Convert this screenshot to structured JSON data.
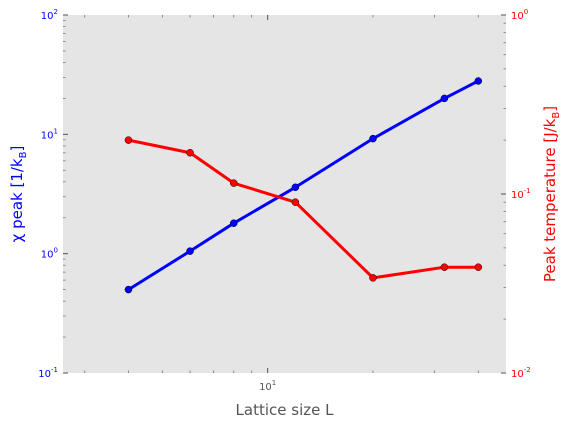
{
  "chart_data": {
    "type": "line",
    "x": [
      4,
      6,
      8,
      12,
      20,
      32,
      40
    ],
    "xscale": "log",
    "xlim": [
      2.6,
      48
    ],
    "xlabel": "Lattice size L",
    "x_tick_labels": [
      "10^1"
    ],
    "series": [
      {
        "axis": "left",
        "color": "#0000ff",
        "values": [
          0.5,
          1.05,
          1.8,
          3.6,
          9.2,
          20.0,
          28.0
        ]
      },
      {
        "axis": "right",
        "color": "#ff0000",
        "values": [
          0.2,
          0.17,
          0.115,
          0.09,
          0.034,
          0.039,
          0.039
        ]
      }
    ],
    "left_axis": {
      "label_math": "χ peak [1/k",
      "label_sub": "B",
      "label_close": "]",
      "color": "#0000ff",
      "scale": "log",
      "ylim": [
        0.1,
        100
      ],
      "ticks": [
        {
          "base": "10",
          "exp": "-1"
        },
        {
          "base": "10",
          "exp": "0"
        },
        {
          "base": "10",
          "exp": "1"
        },
        {
          "base": "10",
          "exp": "2"
        }
      ]
    },
    "right_axis": {
      "label_text": "Peak temperature [J/k",
      "label_sub": "B",
      "label_close": "]",
      "color": "#ff0000",
      "scale": "log",
      "ylim": [
        0.01,
        1
      ],
      "ticks": [
        {
          "base": "10",
          "exp": "-2"
        },
        {
          "base": "10",
          "exp": "-1"
        },
        {
          "base": "10",
          "exp": "0"
        }
      ]
    },
    "x_ticks": [
      {
        "base": "10",
        "exp": "1"
      }
    ],
    "background": "#e5e5e5",
    "grid": false
  }
}
